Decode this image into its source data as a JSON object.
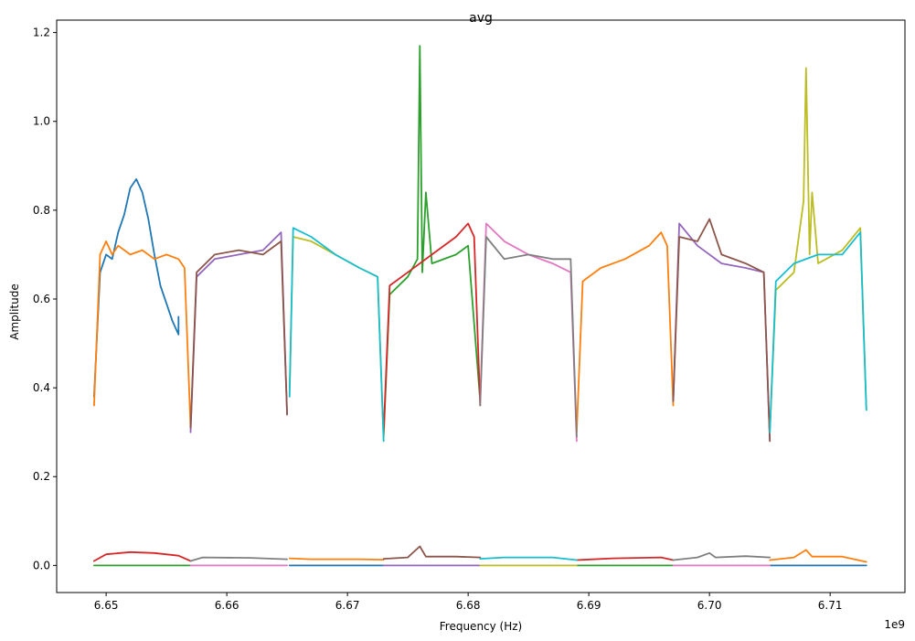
{
  "chart_data": {
    "type": "line",
    "title": "avg",
    "xlabel": "Frequency (Hz)",
    "ylabel": "Amplitude",
    "x_offset_label": "1e9",
    "x_tick_values": [
      6.65,
      6.66,
      6.67,
      6.68,
      6.69,
      6.7,
      6.71
    ],
    "x_tick_labels": [
      "6.65",
      "6.66",
      "6.67",
      "6.68",
      "6.69",
      "6.70",
      "6.71"
    ],
    "y_tick_values": [
      0.0,
      0.2,
      0.4,
      0.6,
      0.8,
      1.0,
      1.2
    ],
    "y_tick_labels": [
      "0.0",
      "0.2",
      "0.4",
      "0.6",
      "0.8",
      "1.0",
      "1.2"
    ],
    "xlim": [
      6.6459,
      6.7162
    ],
    "ylim": [
      -0.061,
      1.228
    ],
    "x_unit_scale": "1e9 Hz",
    "grid": false,
    "legend": "none",
    "colors": [
      "#1f77b4",
      "#ff7f0e",
      "#2ca02c",
      "#d62728",
      "#9467bd",
      "#8c564b",
      "#e377c2",
      "#7f7f7f",
      "#bcbd22",
      "#17becf"
    ],
    "series": [
      {
        "color": "#1f77b4",
        "points": [
          [
            6.649,
            0.38
          ],
          [
            6.6495,
            0.66
          ],
          [
            6.65,
            0.7
          ],
          [
            6.6505,
            0.69
          ],
          [
            6.651,
            0.75
          ],
          [
            6.6515,
            0.79
          ],
          [
            6.652,
            0.85
          ],
          [
            6.6525,
            0.87
          ],
          [
            6.653,
            0.84
          ],
          [
            6.6535,
            0.78
          ],
          [
            6.654,
            0.7
          ],
          [
            6.6545,
            0.63
          ],
          [
            6.655,
            0.59
          ],
          [
            6.6555,
            0.55
          ],
          [
            6.656,
            0.52
          ],
          [
            6.656,
            0.56
          ]
        ]
      },
      {
        "color": "#1f77b4",
        "points": [
          [
            6.6652,
            0.0
          ],
          [
            6.673,
            0.0
          ]
        ]
      },
      {
        "color": "#1f77b4",
        "points": [
          [
            6.705,
            0.0
          ],
          [
            6.713,
            0.0
          ]
        ]
      },
      {
        "color": "#ff7f0e",
        "points": [
          [
            6.649,
            0.36
          ],
          [
            6.6495,
            0.7
          ],
          [
            6.65,
            0.73
          ],
          [
            6.6505,
            0.7
          ],
          [
            6.651,
            0.72
          ],
          [
            6.652,
            0.7
          ],
          [
            6.653,
            0.71
          ],
          [
            6.654,
            0.69
          ],
          [
            6.655,
            0.7
          ],
          [
            6.656,
            0.69
          ],
          [
            6.6565,
            0.67
          ],
          [
            6.657,
            0.31
          ]
        ]
      },
      {
        "color": "#ff7f0e",
        "points": [
          [
            6.6652,
            0.016
          ],
          [
            6.667,
            0.014
          ],
          [
            6.671,
            0.014
          ],
          [
            6.673,
            0.013
          ]
        ]
      },
      {
        "color": "#ff7f0e",
        "points": [
          [
            6.689,
            0.3
          ],
          [
            6.6895,
            0.64
          ],
          [
            6.691,
            0.67
          ],
          [
            6.693,
            0.69
          ],
          [
            6.695,
            0.72
          ],
          [
            6.696,
            0.75
          ],
          [
            6.6965,
            0.72
          ],
          [
            6.697,
            0.36
          ]
        ]
      },
      {
        "color": "#ff7f0e",
        "points": [
          [
            6.705,
            0.012
          ],
          [
            6.707,
            0.018
          ],
          [
            6.708,
            0.035
          ],
          [
            6.7085,
            0.02
          ],
          [
            6.711,
            0.02
          ],
          [
            6.713,
            0.008
          ]
        ]
      },
      {
        "color": "#2ca02c",
        "points": [
          [
            6.649,
            0.0
          ],
          [
            6.657,
            0.0
          ]
        ]
      },
      {
        "color": "#2ca02c",
        "points": [
          [
            6.673,
            0.29
          ],
          [
            6.6735,
            0.61
          ],
          [
            6.675,
            0.65
          ],
          [
            6.6758,
            0.69
          ],
          [
            6.676,
            1.17
          ],
          [
            6.6762,
            0.66
          ],
          [
            6.6765,
            0.84
          ],
          [
            6.677,
            0.68
          ],
          [
            6.679,
            0.7
          ],
          [
            6.68,
            0.72
          ],
          [
            6.681,
            0.37
          ]
        ]
      },
      {
        "color": "#2ca02c",
        "points": [
          [
            6.689,
            0.0
          ],
          [
            6.697,
            0.0
          ]
        ]
      },
      {
        "color": "#d62728",
        "points": [
          [
            6.649,
            0.01
          ],
          [
            6.65,
            0.025
          ],
          [
            6.652,
            0.03
          ],
          [
            6.654,
            0.028
          ],
          [
            6.656,
            0.022
          ],
          [
            6.657,
            0.01
          ]
        ]
      },
      {
        "color": "#d62728",
        "points": [
          [
            6.673,
            0.3
          ],
          [
            6.6735,
            0.63
          ],
          [
            6.675,
            0.66
          ],
          [
            6.677,
            0.7
          ],
          [
            6.679,
            0.74
          ],
          [
            6.68,
            0.77
          ],
          [
            6.6805,
            0.74
          ],
          [
            6.681,
            0.36
          ]
        ]
      },
      {
        "color": "#d62728",
        "points": [
          [
            6.689,
            0.012
          ],
          [
            6.692,
            0.016
          ],
          [
            6.696,
            0.018
          ],
          [
            6.697,
            0.012
          ]
        ]
      },
      {
        "color": "#9467bd",
        "points": [
          [
            6.657,
            0.3
          ],
          [
            6.6575,
            0.65
          ],
          [
            6.659,
            0.69
          ],
          [
            6.661,
            0.7
          ],
          [
            6.663,
            0.71
          ],
          [
            6.6645,
            0.75
          ],
          [
            6.665,
            0.34
          ]
        ]
      },
      {
        "color": "#9467bd",
        "points": [
          [
            6.673,
            0.0
          ],
          [
            6.681,
            0.0
          ]
        ]
      },
      {
        "color": "#9467bd",
        "points": [
          [
            6.697,
            0.37
          ],
          [
            6.6975,
            0.77
          ],
          [
            6.699,
            0.72
          ],
          [
            6.701,
            0.68
          ],
          [
            6.703,
            0.67
          ],
          [
            6.7045,
            0.66
          ],
          [
            6.705,
            0.28
          ]
        ]
      },
      {
        "color": "#8c564b",
        "points": [
          [
            6.657,
            0.31
          ],
          [
            6.6575,
            0.66
          ],
          [
            6.659,
            0.7
          ],
          [
            6.661,
            0.71
          ],
          [
            6.663,
            0.7
          ],
          [
            6.6645,
            0.73
          ],
          [
            6.665,
            0.34
          ]
        ]
      },
      {
        "color": "#8c564b",
        "points": [
          [
            6.673,
            0.015
          ],
          [
            6.675,
            0.018
          ],
          [
            6.676,
            0.043
          ],
          [
            6.6765,
            0.02
          ],
          [
            6.679,
            0.02
          ],
          [
            6.681,
            0.018
          ]
        ]
      },
      {
        "color": "#8c564b",
        "points": [
          [
            6.697,
            0.37
          ],
          [
            6.6975,
            0.74
          ],
          [
            6.699,
            0.73
          ],
          [
            6.7,
            0.78
          ],
          [
            6.701,
            0.7
          ],
          [
            6.703,
            0.68
          ],
          [
            6.7045,
            0.66
          ],
          [
            6.705,
            0.28
          ]
        ]
      },
      {
        "color": "#e377c2",
        "points": [
          [
            6.657,
            0.0
          ],
          [
            6.665,
            0.0
          ]
        ]
      },
      {
        "color": "#e377c2",
        "points": [
          [
            6.681,
            0.37
          ],
          [
            6.6815,
            0.77
          ],
          [
            6.683,
            0.73
          ],
          [
            6.685,
            0.7
          ],
          [
            6.687,
            0.68
          ],
          [
            6.6885,
            0.66
          ],
          [
            6.689,
            0.28
          ]
        ]
      },
      {
        "color": "#e377c2",
        "points": [
          [
            6.697,
            0.0
          ],
          [
            6.705,
            0.0
          ]
        ]
      },
      {
        "color": "#7f7f7f",
        "points": [
          [
            6.657,
            0.01
          ],
          [
            6.658,
            0.018
          ],
          [
            6.662,
            0.017
          ],
          [
            6.665,
            0.014
          ]
        ]
      },
      {
        "color": "#7f7f7f",
        "points": [
          [
            6.681,
            0.36
          ],
          [
            6.6815,
            0.74
          ],
          [
            6.683,
            0.69
          ],
          [
            6.685,
            0.7
          ],
          [
            6.687,
            0.69
          ],
          [
            6.6885,
            0.69
          ],
          [
            6.689,
            0.29
          ]
        ]
      },
      {
        "color": "#7f7f7f",
        "points": [
          [
            6.697,
            0.012
          ],
          [
            6.699,
            0.018
          ],
          [
            6.7,
            0.028
          ],
          [
            6.7005,
            0.018
          ],
          [
            6.703,
            0.021
          ],
          [
            6.705,
            0.018
          ]
        ]
      },
      {
        "color": "#bcbd22",
        "points": [
          [
            6.6652,
            0.4
          ],
          [
            6.6655,
            0.74
          ],
          [
            6.667,
            0.73
          ],
          [
            6.669,
            0.7
          ],
          [
            6.671,
            0.67
          ],
          [
            6.6725,
            0.65
          ],
          [
            6.673,
            0.28
          ]
        ]
      },
      {
        "color": "#bcbd22",
        "points": [
          [
            6.681,
            0.0
          ],
          [
            6.689,
            0.0
          ]
        ]
      },
      {
        "color": "#bcbd22",
        "points": [
          [
            6.705,
            0.3
          ],
          [
            6.7055,
            0.62
          ],
          [
            6.707,
            0.66
          ],
          [
            6.7078,
            0.82
          ],
          [
            6.708,
            1.12
          ],
          [
            6.7083,
            0.7
          ],
          [
            6.7085,
            0.84
          ],
          [
            6.709,
            0.68
          ],
          [
            6.711,
            0.71
          ],
          [
            6.7125,
            0.76
          ],
          [
            6.713,
            0.35
          ]
        ]
      },
      {
        "color": "#17becf",
        "points": [
          [
            6.6652,
            0.38
          ],
          [
            6.6655,
            0.76
          ],
          [
            6.667,
            0.74
          ],
          [
            6.669,
            0.7
          ],
          [
            6.671,
            0.67
          ],
          [
            6.6725,
            0.65
          ],
          [
            6.673,
            0.28
          ]
        ]
      },
      {
        "color": "#17becf",
        "points": [
          [
            6.681,
            0.015
          ],
          [
            6.683,
            0.018
          ],
          [
            6.687,
            0.018
          ],
          [
            6.689,
            0.012
          ]
        ]
      },
      {
        "color": "#17becf",
        "points": [
          [
            6.705,
            0.3
          ],
          [
            6.7055,
            0.64
          ],
          [
            6.707,
            0.68
          ],
          [
            6.709,
            0.7
          ],
          [
            6.711,
            0.7
          ],
          [
            6.7125,
            0.75
          ],
          [
            6.713,
            0.35
          ]
        ]
      }
    ]
  }
}
